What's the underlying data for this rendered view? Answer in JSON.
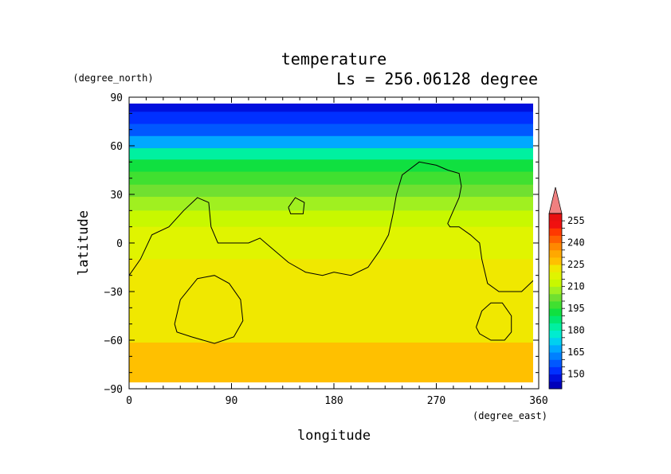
{
  "chart_data": {
    "type": "heatmap",
    "title": "temperature",
    "subtitle": "Ls = 256.06128 degree",
    "xlabel": "longitude",
    "ylabel": "latitude",
    "x_unit": "(degree_east)",
    "y_unit": "(degree_north)",
    "xlim": [
      0,
      360
    ],
    "ylim": [
      -90,
      90
    ],
    "x_ticks": [
      "0",
      "90",
      "180",
      "270",
      "360"
    ],
    "y_ticks": [
      "90",
      "60",
      "30",
      "0",
      "−30",
      "−60",
      "−90"
    ],
    "colorbar": {
      "labels": [
        "255",
        "240",
        "225",
        "210",
        "195",
        "180",
        "165",
        "150"
      ],
      "levels": [
        140,
        145,
        150,
        155,
        160,
        165,
        170,
        175,
        180,
        185,
        190,
        195,
        200,
        205,
        210,
        215,
        220,
        225,
        230,
        235,
        240,
        245,
        250,
        255,
        260
      ],
      "colors": [
        "#0000bb",
        "#0010dd",
        "#0030ff",
        "#0058ff",
        "#0080ff",
        "#00a8ff",
        "#00d0f0",
        "#00ecd0",
        "#00f0a0",
        "#00e870",
        "#10e040",
        "#40e030",
        "#70e030",
        "#a0f020",
        "#c8f800",
        "#e0f400",
        "#f0e800",
        "#ffc000",
        "#ffa800",
        "#ff8800",
        "#ff6000",
        "#ff3800",
        "#f01010",
        "#e81010"
      ],
      "extend_color": "#f08080"
    },
    "latitude_profile": [
      {
        "lat": 85,
        "value": 147
      },
      {
        "lat": 77,
        "value": 150
      },
      {
        "lat": 70,
        "value": 158
      },
      {
        "lat": 62,
        "value": 168
      },
      {
        "lat": 55,
        "value": 180
      },
      {
        "lat": 48,
        "value": 190
      },
      {
        "lat": 40,
        "value": 198
      },
      {
        "lat": 32,
        "value": 203
      },
      {
        "lat": 25,
        "value": 207
      },
      {
        "lat": 15,
        "value": 212
      },
      {
        "lat": 5,
        "value": 216
      },
      {
        "lat": -5,
        "value": 219
      },
      {
        "lat": -15,
        "value": 221
      },
      {
        "lat": -25,
        "value": 222
      },
      {
        "lat": -40,
        "value": 223
      },
      {
        "lat": -55,
        "value": 224
      },
      {
        "lat": -68,
        "value": 226
      },
      {
        "lat": -85,
        "value": 227
      }
    ],
    "contour_lines": [
      {
        "points": [
          [
            0,
            -20
          ],
          [
            10,
            -10
          ],
          [
            20,
            5
          ],
          [
            35,
            10
          ],
          [
            48,
            20
          ],
          [
            60,
            28
          ],
          [
            70,
            25
          ],
          [
            72,
            10
          ],
          [
            78,
            0
          ],
          [
            90,
            0
          ],
          [
            105,
            0
          ],
          [
            115,
            3
          ],
          [
            125,
            -3
          ],
          [
            140,
            -12
          ],
          [
            155,
            -18
          ],
          [
            170,
            -20
          ],
          [
            180,
            -18
          ],
          [
            195,
            -20
          ],
          [
            210,
            -15
          ],
          [
            220,
            -5
          ],
          [
            228,
            5
          ],
          [
            232,
            18
          ],
          [
            235,
            30
          ],
          [
            240,
            42
          ],
          [
            255,
            50
          ],
          [
            270,
            48
          ],
          [
            280,
            45
          ],
          [
            290,
            43
          ],
          [
            292,
            35
          ],
          [
            290,
            28
          ],
          [
            285,
            20
          ],
          [
            280,
            12
          ],
          [
            282,
            10
          ],
          [
            290,
            10
          ],
          [
            300,
            5
          ],
          [
            308,
            0
          ],
          [
            310,
            -10
          ],
          [
            315,
            -25
          ],
          [
            325,
            -30
          ],
          [
            345,
            -30
          ],
          [
            360,
            -20
          ]
        ]
      },
      {
        "points": [
          [
            140,
            22
          ],
          [
            146,
            28
          ],
          [
            154,
            25
          ],
          [
            153,
            18
          ],
          [
            142,
            18
          ],
          [
            140,
            22
          ]
        ]
      },
      {
        "points": [
          [
            40,
            -50
          ],
          [
            45,
            -35
          ],
          [
            60,
            -22
          ],
          [
            75,
            -20
          ],
          [
            88,
            -25
          ],
          [
            98,
            -35
          ],
          [
            100,
            -48
          ],
          [
            92,
            -58
          ],
          [
            75,
            -62
          ],
          [
            55,
            -58
          ],
          [
            42,
            -55
          ],
          [
            40,
            -50
          ]
        ]
      },
      {
        "points": [
          [
            305,
            -52
          ],
          [
            310,
            -42
          ],
          [
            318,
            -37
          ],
          [
            328,
            -37
          ],
          [
            336,
            -45
          ],
          [
            336,
            -55
          ],
          [
            330,
            -60
          ],
          [
            318,
            -60
          ],
          [
            308,
            -56
          ],
          [
            305,
            -52
          ]
        ]
      }
    ]
  }
}
